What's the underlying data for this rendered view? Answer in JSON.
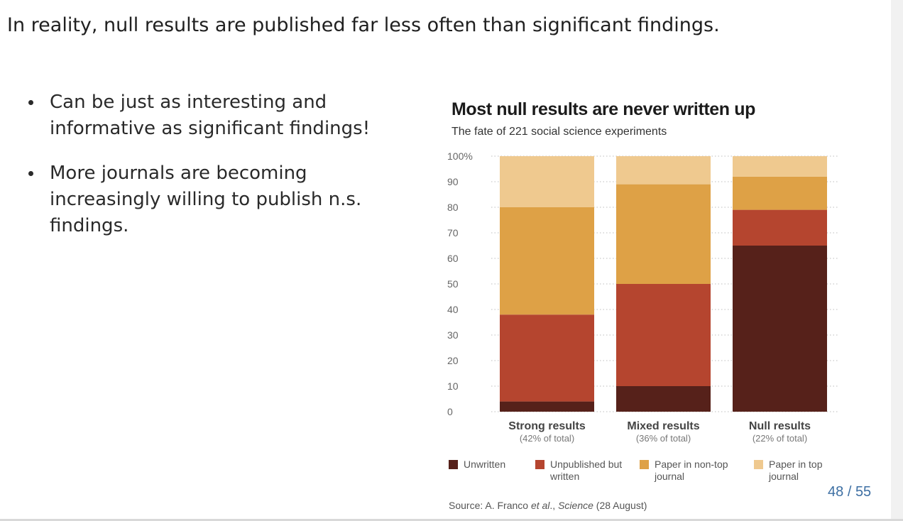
{
  "slide": {
    "title": "In reality, null results are published far less often than significant findings.",
    "bullets": [
      "Can be just as interesting and informative as significant findings!",
      "More journals are becoming increasingly willing to publish n.s. findings."
    ],
    "page_current": "48",
    "page_separator": "/",
    "page_total": "55"
  },
  "chart_data": {
    "type": "bar",
    "stacked": true,
    "title": "Most null results are never written up",
    "subtitle": "The fate of 221 social science experiments",
    "categories": [
      "Strong results",
      "Mixed results",
      "Null results"
    ],
    "category_notes": [
      "(42% of total)",
      "(36% of total)",
      "(22% of total)"
    ],
    "ylim": [
      0,
      100
    ],
    "y_ticks": [
      "0",
      "10",
      "20",
      "30",
      "40",
      "50",
      "60",
      "70",
      "80",
      "90",
      "100%"
    ],
    "grid": "dotted",
    "legend_position": "bottom",
    "series": [
      {
        "name": "Unwritten",
        "color": "#56211a",
        "values": [
          4,
          10,
          65
        ]
      },
      {
        "name": "Unpublished but written",
        "color": "#b5452f",
        "values": [
          34,
          40,
          14
        ]
      },
      {
        "name": "Paper in non-top journal",
        "color": "#dea146",
        "values": [
          42,
          39,
          13
        ]
      },
      {
        "name": "Paper in top journal",
        "color": "#efc98f",
        "values": [
          20,
          11,
          8
        ]
      }
    ],
    "source_prefix": "Source: A. Franco ",
    "source_italic": "et al",
    "source_mid": "., ",
    "source_journal": "Science",
    "source_suffix": " (28 August)"
  }
}
